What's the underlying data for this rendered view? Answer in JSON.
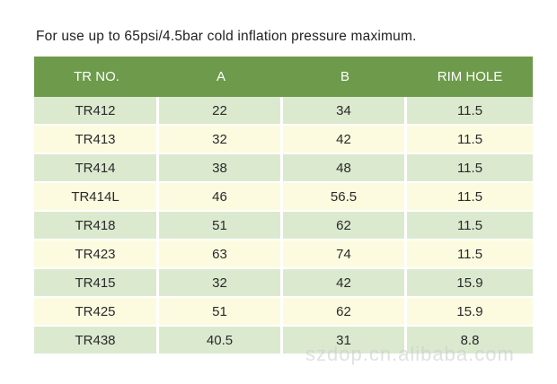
{
  "note": "For use up to 65psi/4.5bar cold inflation pressure maximum.",
  "table": {
    "headers": [
      "TR NO.",
      "A",
      "B",
      "RIM HOLE"
    ],
    "rows": [
      [
        "TR412",
        "22",
        "34",
        "11.5"
      ],
      [
        "TR413",
        "32",
        "42",
        "11.5"
      ],
      [
        "TR414",
        "38",
        "48",
        "11.5"
      ],
      [
        "TR414L",
        "46",
        "56.5",
        "11.5"
      ],
      [
        "TR418",
        "51",
        "62",
        "11.5"
      ],
      [
        "TR423",
        "63",
        "74",
        "11.5"
      ],
      [
        "TR415",
        "32",
        "42",
        "15.9"
      ],
      [
        "TR425",
        "51",
        "62",
        "15.9"
      ],
      [
        "TR438",
        "40.5",
        "31",
        "8.8"
      ]
    ]
  },
  "watermark": "szdop.cn.alibaba.com"
}
